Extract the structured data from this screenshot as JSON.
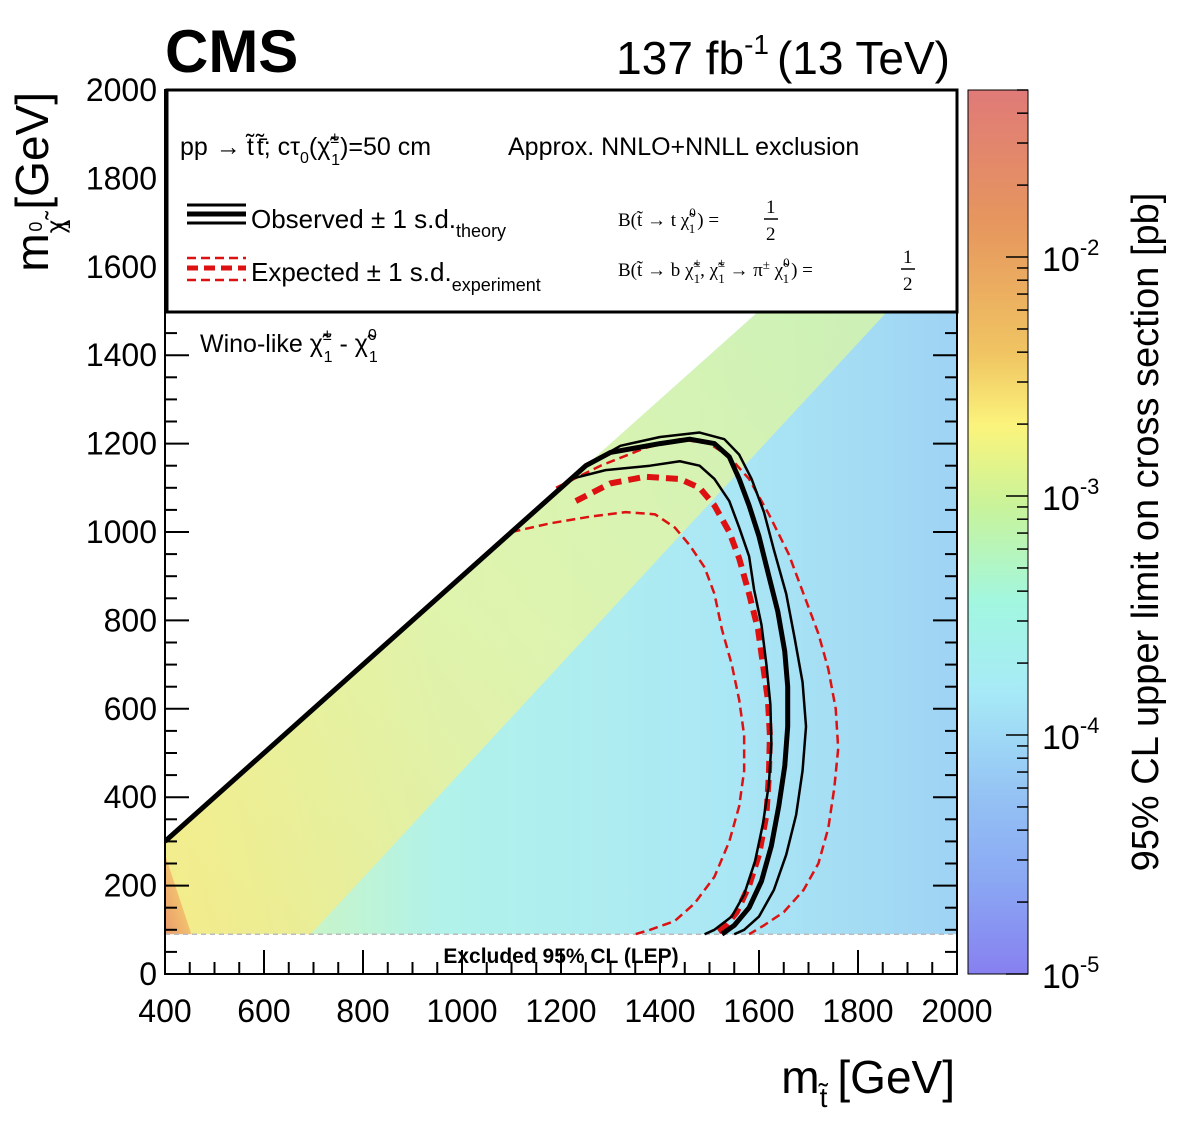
{
  "header": {
    "experiment": "CMS",
    "lumi_prefix": "137 fb",
    "lumi_exp": "-1",
    "energy": "(13 TeV)"
  },
  "legend": {
    "process_pp": "pp",
    "process_arrow": "→",
    "process_st": "t̃",
    "process_stbar": "t̃̄",
    "process_ctau": "cτ",
    "process_ctau_sub": "0",
    "process_chi": "(χ̃",
    "process_chi_sup": "±",
    "process_chi_sub": "1",
    "process_value": ")=50 cm",
    "xsec_label": "Approx. NNLO+NNLL exclusion",
    "observed_label": "Observed ± 1 s.d.",
    "observed_sub": "theory",
    "expected_label": "Expected ± 1 s.d.",
    "expected_sub": "experiment",
    "br1_text": "B(t̃ → t χ̃",
    "br1_sup": "0",
    "br1_sub": "1",
    "br1_close": ") =",
    "br2_text": "B(t̃ → b χ̃",
    "br2_sup": "±",
    "br2_sub": "1",
    "br2_mid": ", χ̃",
    "br2_sup2": "±",
    "br2_sub2": "1",
    "br2_arrow": " → π",
    "br2_pisup": "±",
    "br2_chi": " χ̃",
    "br2_sup3": "0",
    "br2_sub3": "1",
    "br2_close": ") =",
    "frac_num": "1",
    "frac_den": "2"
  },
  "annotations": {
    "wino_prefix": "Wino-like χ̃",
    "wino_sup1": "±",
    "wino_sub1": "1",
    "wino_dash": " - χ̃",
    "wino_sup2": "0",
    "wino_sub2": "1",
    "lep": "Excluded 95% CL (LEP)"
  },
  "axes": {
    "xlabel_m": "m",
    "xlabel_sub": "t̃",
    "xlabel_unit": "[GeV]",
    "ylabel_m": "m",
    "ylabel_sub": "χ̃",
    "ylabel_sup": "0",
    "ylabel_sub2": "1",
    "ylabel_unit": "[GeV]",
    "zlabel": "95% CL upper limit on cross section [pb]",
    "z_ticks": [
      {
        "base": "10",
        "exp": "-2",
        "value": 0.01
      },
      {
        "base": "10",
        "exp": "-3",
        "value": 0.001
      },
      {
        "base": "10",
        "exp": "-4",
        "value": 0.0001
      },
      {
        "base": "10",
        "exp": "-5",
        "value": 1e-05
      }
    ]
  },
  "colors": {
    "observed": "#000000",
    "expected": "#dd1111",
    "z_top": "#e07a78",
    "z_bottom": "#8a80f0"
  },
  "chart_data": {
    "type": "heatmap",
    "title": "CMS 137 fb^-1 (13 TeV)",
    "xlabel": "m_stop [GeV]",
    "ylabel": "m_chi10 [GeV]",
    "zlabel": "95% CL upper limit on cross section [pb]",
    "xlim": [
      400,
      2000
    ],
    "ylim": [
      0,
      2000
    ],
    "zlim": [
      1e-05,
      0.05
    ],
    "z_scale": "log",
    "x_ticks": [
      400,
      600,
      800,
      1000,
      1200,
      1400,
      1600,
      1800,
      2000
    ],
    "y_ticks": [
      0,
      200,
      400,
      600,
      800,
      1000,
      1200,
      1400,
      1600,
      1800,
      2000
    ],
    "diagonal": [
      [
        400,
        300
      ],
      [
        1700,
        1600
      ]
    ],
    "lep_exclusion_y": 90,
    "contours": [
      {
        "name": "observed",
        "style": "thick-solid",
        "points": [
          [
            400,
            300
          ],
          [
            1250,
            1150
          ],
          [
            1300,
            1180
          ],
          [
            1350,
            1190
          ],
          [
            1400,
            1200
          ],
          [
            1460,
            1210
          ],
          [
            1510,
            1200
          ],
          [
            1540,
            1170
          ],
          [
            1560,
            1120
          ],
          [
            1580,
            1060
          ],
          [
            1600,
            990
          ],
          [
            1620,
            900
          ],
          [
            1638,
            820
          ],
          [
            1652,
            730
          ],
          [
            1658,
            650
          ],
          [
            1658,
            560
          ],
          [
            1652,
            470
          ],
          [
            1640,
            380
          ],
          [
            1625,
            290
          ],
          [
            1605,
            210
          ],
          [
            1580,
            150
          ],
          [
            1550,
            110
          ],
          [
            1525,
            90
          ]
        ]
      },
      {
        "name": "observed_plus",
        "style": "thin-solid",
        "points": [
          [
            1265,
            1160
          ],
          [
            1320,
            1195
          ],
          [
            1400,
            1215
          ],
          [
            1480,
            1225
          ],
          [
            1530,
            1210
          ],
          [
            1560,
            1175
          ],
          [
            1585,
            1120
          ],
          [
            1610,
            1045
          ],
          [
            1630,
            960
          ],
          [
            1655,
            860
          ],
          [
            1672,
            760
          ],
          [
            1688,
            660
          ],
          [
            1695,
            560
          ],
          [
            1688,
            460
          ],
          [
            1675,
            360
          ],
          [
            1655,
            270
          ],
          [
            1630,
            190
          ],
          [
            1600,
            130
          ],
          [
            1570,
            100
          ],
          [
            1550,
            90
          ]
        ]
      },
      {
        "name": "observed_minus",
        "style": "thin-solid",
        "points": [
          [
            1220,
            1120
          ],
          [
            1290,
            1140
          ],
          [
            1380,
            1150
          ],
          [
            1440,
            1160
          ],
          [
            1480,
            1150
          ],
          [
            1510,
            1120
          ],
          [
            1540,
            1070
          ],
          [
            1560,
            1010
          ],
          [
            1580,
            945
          ],
          [
            1590,
            870
          ],
          [
            1605,
            790
          ],
          [
            1615,
            700
          ],
          [
            1623,
            610
          ],
          [
            1625,
            520
          ],
          [
            1620,
            430
          ],
          [
            1608,
            340
          ],
          [
            1592,
            255
          ],
          [
            1570,
            180
          ],
          [
            1545,
            130
          ],
          [
            1510,
            100
          ],
          [
            1490,
            90
          ]
        ]
      },
      {
        "name": "expected",
        "style": "thick-dashed",
        "points": [
          [
            1230,
            1070
          ],
          [
            1300,
            1110
          ],
          [
            1370,
            1125
          ],
          [
            1440,
            1120
          ],
          [
            1480,
            1100
          ],
          [
            1510,
            1060
          ],
          [
            1540,
            1000
          ],
          [
            1560,
            940
          ],
          [
            1580,
            860
          ],
          [
            1598,
            780
          ],
          [
            1608,
            700
          ],
          [
            1618,
            620
          ],
          [
            1622,
            540
          ],
          [
            1620,
            450
          ],
          [
            1615,
            360
          ],
          [
            1600,
            270
          ],
          [
            1580,
            200
          ],
          [
            1555,
            140
          ],
          [
            1530,
            105
          ],
          [
            1510,
            90
          ]
        ]
      },
      {
        "name": "expected_plus",
        "style": "thin-dashed",
        "points": [
          [
            1190,
            1100
          ],
          [
            1280,
            1150
          ],
          [
            1370,
            1190
          ],
          [
            1440,
            1210
          ],
          [
            1500,
            1200
          ],
          [
            1540,
            1170
          ],
          [
            1580,
            1120
          ],
          [
            1620,
            1040
          ],
          [
            1660,
            950
          ],
          [
            1690,
            860
          ],
          [
            1720,
            770
          ],
          [
            1740,
            690
          ],
          [
            1755,
            600
          ],
          [
            1760,
            510
          ],
          [
            1752,
            420
          ],
          [
            1740,
            330
          ],
          [
            1720,
            250
          ],
          [
            1690,
            190
          ],
          [
            1650,
            140
          ],
          [
            1610,
            110
          ],
          [
            1580,
            90
          ]
        ]
      },
      {
        "name": "expected_minus",
        "style": "thin-dashed",
        "points": [
          [
            1100,
            1000
          ],
          [
            1180,
            1020
          ],
          [
            1260,
            1035
          ],
          [
            1330,
            1045
          ],
          [
            1390,
            1040
          ],
          [
            1430,
            1010
          ],
          [
            1460,
            970
          ],
          [
            1490,
            920
          ],
          [
            1510,
            860
          ],
          [
            1525,
            780
          ],
          [
            1545,
            700
          ],
          [
            1560,
            620
          ],
          [
            1570,
            540
          ],
          [
            1570,
            460
          ],
          [
            1560,
            380
          ],
          [
            1540,
            300
          ],
          [
            1510,
            220
          ],
          [
            1470,
            160
          ],
          [
            1430,
            120
          ],
          [
            1380,
            100
          ],
          [
            1350,
            90
          ]
        ]
      }
    ]
  }
}
